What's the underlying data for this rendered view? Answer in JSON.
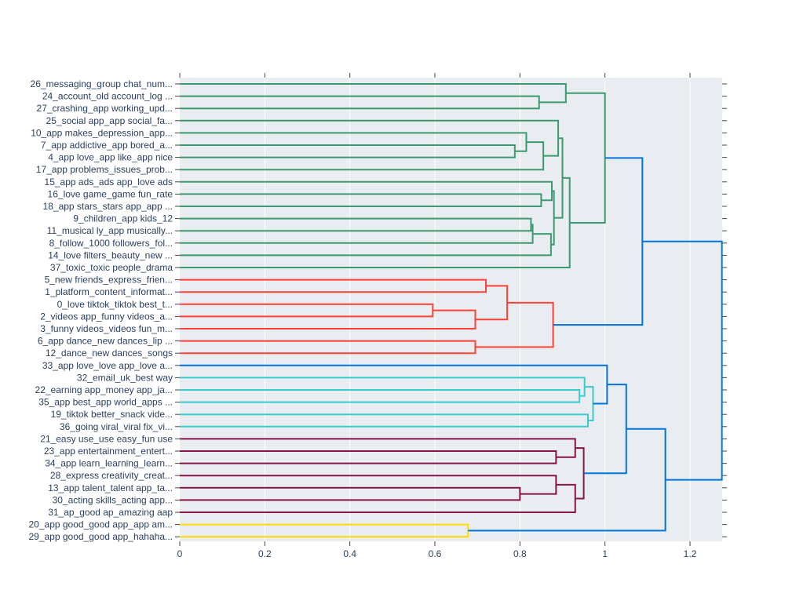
{
  "chart_data": {
    "type": "dendrogram",
    "orientation": "horizontal",
    "title": "",
    "xlabel": "",
    "ylabel": "",
    "xlim": [
      0,
      1.275
    ],
    "x_ticks": [
      0,
      0.2,
      0.4,
      0.6,
      0.8,
      1,
      1.2
    ],
    "x_tick_labels": [
      "0",
      "0.2",
      "0.4",
      "0.6",
      "0.8",
      "1",
      "1.2"
    ],
    "grid": true,
    "background": "#e9edf1",
    "labels": [
      "26_messaging_group chat_num...",
      "24_account_old account_log ...",
      "27_crashing_app working_upd...",
      "25_social app_app social_fa...",
      "10_app makes_depression_app...",
      "7_app addictive_app bored_a...",
      "4_app love_app like_app nice",
      "17_app problems_issues_prob...",
      "15_app ads_ads app_love ads",
      "16_love game_game fun_rate",
      "18_app stars_stars app_app ...",
      "9_children_app kids_12",
      "11_musical ly_app musically...",
      "8_follow_1000 followers_fol...",
      "14_love filters_beauty_new ...",
      "37_toxic_toxic people_drama",
      "5_new friends_express_frien...",
      "1_platform_content_informat...",
      "0_love tiktok_tiktok best_t...",
      "2_videos app_funny videos_a...",
      "3_funny videos_videos fun_m...",
      "6_app dance_new dances_lip ...",
      "12_dance_new dances_songs",
      "33_app love_love app_love a...",
      "32_email_uk_best way",
      "22_earning app_money app_ja...",
      "35_app best_app world_apps ...",
      "19_tiktok better_snack vide...",
      "36_going viral_viral fix_vi...",
      "21_easy use_use easy_fun use",
      "23_app entertainment_entert...",
      "34_app learn_learning_learn...",
      "28_express creativity_creat...",
      "13_app talent_talent app_ta...",
      "30_acting skills_acting app...",
      "31_ap_good ap_amazing aap",
      "20_app good_good app_app am...",
      "29_app good_good app_hahaha..."
    ],
    "colors": {
      "green": "#3d9970",
      "red": "#ff4136",
      "blue": "#0074d9",
      "cyan": "#39cccc",
      "maroon": "#85144b",
      "yellow": "#ffdc00"
    },
    "merges": [
      {
        "id": "c1",
        "a": 5,
        "b": 6,
        "h": 0.788,
        "color": "green"
      },
      {
        "id": "c2",
        "a": 4,
        "b": "c1",
        "h": 0.815,
        "color": "green"
      },
      {
        "id": "c3",
        "a": "c2",
        "b": 7,
        "h": 0.855,
        "color": "green"
      },
      {
        "id": "c4",
        "a": 3,
        "b": "c3",
        "h": 0.89,
        "color": "green"
      },
      {
        "id": "c5",
        "a": 9,
        "b": 10,
        "h": 0.85,
        "color": "green"
      },
      {
        "id": "c6",
        "a": 8,
        "b": "c5",
        "h": 0.875,
        "color": "green"
      },
      {
        "id": "c7",
        "a": 11,
        "b": 12,
        "h": 0.826,
        "color": "green"
      },
      {
        "id": "c8",
        "a": "c7",
        "b": 13,
        "h": 0.83,
        "color": "green"
      },
      {
        "id": "c9",
        "a": "c8",
        "b": 14,
        "h": 0.873,
        "color": "green"
      },
      {
        "id": "c10",
        "a": "c6",
        "b": "c9",
        "h": 0.88,
        "color": "green"
      },
      {
        "id": "c11",
        "a": "c4",
        "b": "c10",
        "h": 0.9,
        "color": "green"
      },
      {
        "id": "c12",
        "a": "c11",
        "b": 15,
        "h": 0.917,
        "color": "green"
      },
      {
        "id": "c13",
        "a": 1,
        "b": 2,
        "h": 0.845,
        "color": "green"
      },
      {
        "id": "c14",
        "a": 0,
        "b": "c13",
        "h": 0.908,
        "color": "green"
      },
      {
        "id": "c15",
        "a": "c14",
        "b": "c12",
        "h": 1.0,
        "color": "green"
      },
      {
        "id": "c16",
        "a": 16,
        "b": 17,
        "h": 0.72,
        "color": "red"
      },
      {
        "id": "c17",
        "a": 18,
        "b": 19,
        "h": 0.595,
        "color": "red"
      },
      {
        "id": "c18",
        "a": "c17",
        "b": 20,
        "h": 0.695,
        "color": "red"
      },
      {
        "id": "c19",
        "a": "c16",
        "b": "c18",
        "h": 0.77,
        "color": "red"
      },
      {
        "id": "c20",
        "a": 21,
        "b": 22,
        "h": 0.695,
        "color": "red"
      },
      {
        "id": "c21",
        "a": "c19",
        "b": "c20",
        "h": 0.878,
        "color": "red"
      },
      {
        "id": "c22",
        "a": "c15",
        "b": "c21",
        "h": 1.088,
        "color": "blue"
      },
      {
        "id": "c23",
        "a": 25,
        "b": 26,
        "h": 0.94,
        "color": "cyan"
      },
      {
        "id": "c24",
        "a": 24,
        "b": "c23",
        "h": 0.952,
        "color": "cyan"
      },
      {
        "id": "c25",
        "a": 27,
        "b": 28,
        "h": 0.96,
        "color": "cyan"
      },
      {
        "id": "c26",
        "a": "c24",
        "b": "c25",
        "h": 0.972,
        "color": "cyan"
      },
      {
        "id": "c27",
        "a": 23,
        "b": "c26",
        "h": 1.005,
        "color": "blue"
      },
      {
        "id": "c28",
        "a": 30,
        "b": 31,
        "h": 0.885,
        "color": "maroon"
      },
      {
        "id": "c29",
        "a": 29,
        "b": "c28",
        "h": 0.93,
        "color": "maroon"
      },
      {
        "id": "c30",
        "a": 33,
        "b": 34,
        "h": 0.8,
        "color": "maroon"
      },
      {
        "id": "c31",
        "a": 32,
        "b": "c30",
        "h": 0.885,
        "color": "maroon"
      },
      {
        "id": "c32",
        "a": "c31",
        "b": 35,
        "h": 0.93,
        "color": "maroon"
      },
      {
        "id": "c33",
        "a": "c29",
        "b": "c32",
        "h": 0.95,
        "color": "maroon"
      },
      {
        "id": "c34",
        "a": "c27",
        "b": "c33",
        "h": 1.05,
        "color": "blue"
      },
      {
        "id": "c35",
        "a": 36,
        "b": 37,
        "h": 0.678,
        "color": "yellow"
      },
      {
        "id": "c36",
        "a": "c34",
        "b": "c35",
        "h": 1.142,
        "color": "blue"
      },
      {
        "id": "c37",
        "a": "c22",
        "b": "c36",
        "h": 1.275,
        "color": "blue"
      }
    ]
  }
}
